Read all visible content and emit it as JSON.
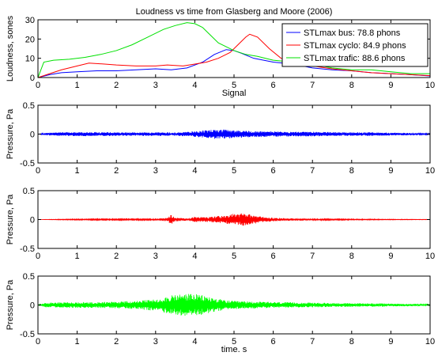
{
  "chart_data": [
    {
      "type": "line",
      "title": "Loudness vs time from Glasberg and Moore (2006)",
      "xlabel": "Signal",
      "ylabel": "Loudness, sones",
      "xlim": [
        0,
        10
      ],
      "ylim": [
        0,
        30
      ],
      "xticks": [
        0,
        1,
        2,
        3,
        4,
        5,
        6,
        7,
        8,
        9,
        10
      ],
      "yticks": [
        0,
        10,
        20,
        30
      ],
      "grid": false,
      "legend_position": "top-right",
      "series": [
        {
          "name": "STLmax bus: 78.8 phons",
          "color": "#0000ff",
          "x": [
            0,
            0.3,
            0.6,
            1.0,
            1.5,
            2.0,
            2.5,
            3.0,
            3.4,
            3.8,
            4.2,
            4.5,
            4.8,
            5.0,
            5.2,
            5.5,
            6.0,
            6.5,
            7.0,
            7.5,
            8.0,
            8.5,
            9.0,
            9.5,
            10.0
          ],
          "y": [
            0,
            1.5,
            2.5,
            3,
            3.5,
            3.5,
            4,
            4.5,
            4,
            5,
            8,
            12,
            14.5,
            14,
            12.5,
            10,
            8,
            7,
            5,
            4,
            3.5,
            2.5,
            2,
            1.5,
            0.8
          ]
        },
        {
          "name": "STLmax cyclo: 84.9 phons",
          "color": "#ff0000",
          "x": [
            0,
            0.3,
            0.6,
            1.0,
            1.3,
            1.7,
            2.0,
            2.5,
            3.0,
            3.3,
            3.7,
            4.0,
            4.3,
            4.6,
            4.9,
            5.1,
            5.3,
            5.4,
            5.6,
            5.9,
            6.2,
            6.6,
            7.0,
            7.5,
            8.0,
            8.5,
            9.0,
            9.5,
            10.0
          ],
          "y": [
            0,
            2,
            4,
            6,
            7.5,
            7,
            6.5,
            6,
            6,
            6.5,
            6,
            7,
            8,
            10,
            13,
            17,
            21,
            22.5,
            21,
            15,
            10,
            7,
            6,
            4.5,
            3.5,
            2.5,
            2,
            1.5,
            1
          ]
        },
        {
          "name": "STLmax trafic: 88.6 phons",
          "color": "#00e000",
          "x": [
            0,
            0.15,
            0.4,
            0.8,
            1.2,
            1.6,
            2.0,
            2.4,
            2.8,
            3.2,
            3.5,
            3.8,
            4.0,
            4.2,
            4.4,
            4.6,
            4.8,
            5.0,
            5.3,
            5.6,
            6.0,
            6.5,
            7.0,
            7.5,
            8.0,
            8.5,
            9.0,
            9.5,
            10.0
          ],
          "y": [
            0,
            8,
            9,
            9.5,
            10.5,
            12,
            14,
            17,
            21,
            25,
            27,
            28.5,
            28,
            26,
            22,
            18,
            16,
            14,
            12,
            11,
            9,
            8,
            7,
            5,
            4,
            4,
            3,
            2,
            2
          ]
        }
      ]
    },
    {
      "type": "line",
      "title": "",
      "xlabel": "",
      "ylabel": "Pressure, Pa",
      "xlim": [
        0,
        10
      ],
      "ylim": [
        -0.5,
        0.5
      ],
      "xticks": [
        0,
        1,
        2,
        3,
        4,
        5,
        6,
        7,
        8,
        9,
        10
      ],
      "yticks": [
        -0.5,
        0,
        0.5
      ],
      "grid": false,
      "series": [
        {
          "color": "#0000ff",
          "envelope_x": [
            0,
            0.2,
            0.5,
            1.0,
            1.5,
            2.0,
            2.5,
            3.0,
            3.5,
            3.8,
            4.2,
            4.5,
            4.7,
            5.0,
            5.5,
            6.0,
            6.5,
            7.0,
            7.5,
            8.0,
            8.5,
            9.0,
            9.5,
            10.0
          ],
          "envelope_amplitude": [
            0,
            0.02,
            0.03,
            0.035,
            0.035,
            0.03,
            0.03,
            0.03,
            0.03,
            0.04,
            0.06,
            0.08,
            0.08,
            0.07,
            0.05,
            0.05,
            0.04,
            0.04,
            0.035,
            0.03,
            0.03,
            0.025,
            0.02,
            0.01
          ]
        }
      ]
    },
    {
      "type": "line",
      "title": "",
      "xlabel": "",
      "ylabel": "Pressure, Pa",
      "xlim": [
        0,
        10
      ],
      "ylim": [
        -0.5,
        0.5
      ],
      "xticks": [
        0,
        1,
        2,
        3,
        4,
        5,
        6,
        7,
        8,
        9,
        10
      ],
      "yticks": [
        -0.5,
        0,
        0.5
      ],
      "grid": false,
      "series": [
        {
          "color": "#ff0000",
          "envelope_x": [
            0,
            0.5,
            1.0,
            1.5,
            2.0,
            2.5,
            3.0,
            3.3,
            3.4,
            3.5,
            3.8,
            4.0,
            4.3,
            4.6,
            4.8,
            5.0,
            5.2,
            5.4,
            5.7,
            6.0,
            6.5,
            7.0,
            7.5,
            8.0,
            9.0,
            10.0
          ],
          "envelope_amplitude": [
            0,
            0.005,
            0.008,
            0.01,
            0.01,
            0.01,
            0.015,
            0.03,
            0.09,
            0.03,
            0.02,
            0.05,
            0.04,
            0.06,
            0.07,
            0.1,
            0.11,
            0.09,
            0.05,
            0.03,
            0.02,
            0.015,
            0.01,
            0.008,
            0.005,
            0.003
          ]
        }
      ]
    },
    {
      "type": "line",
      "title": "",
      "xlabel": "time, s",
      "ylabel": "Pressure, Pa",
      "xlim": [
        0,
        10
      ],
      "ylim": [
        -0.5,
        0.5
      ],
      "xticks": [
        0,
        1,
        2,
        3,
        4,
        5,
        6,
        7,
        8,
        9,
        10
      ],
      "yticks": [
        -0.5,
        0,
        0.5
      ],
      "grid": false,
      "series": [
        {
          "color": "#00ff00",
          "envelope_x": [
            0,
            0.2,
            0.5,
            1.0,
            1.5,
            2.0,
            2.5,
            3.0,
            3.3,
            3.6,
            3.9,
            4.2,
            4.5,
            4.8,
            5.0,
            5.5,
            6.0,
            6.5,
            7.0,
            7.5,
            8.0,
            8.5,
            9.0,
            9.5,
            10.0
          ],
          "envelope_amplitude": [
            0,
            0.04,
            0.045,
            0.05,
            0.05,
            0.06,
            0.07,
            0.1,
            0.15,
            0.19,
            0.2,
            0.17,
            0.12,
            0.08,
            0.07,
            0.06,
            0.05,
            0.045,
            0.04,
            0.035,
            0.03,
            0.03,
            0.025,
            0.02,
            0.015
          ]
        }
      ]
    }
  ]
}
